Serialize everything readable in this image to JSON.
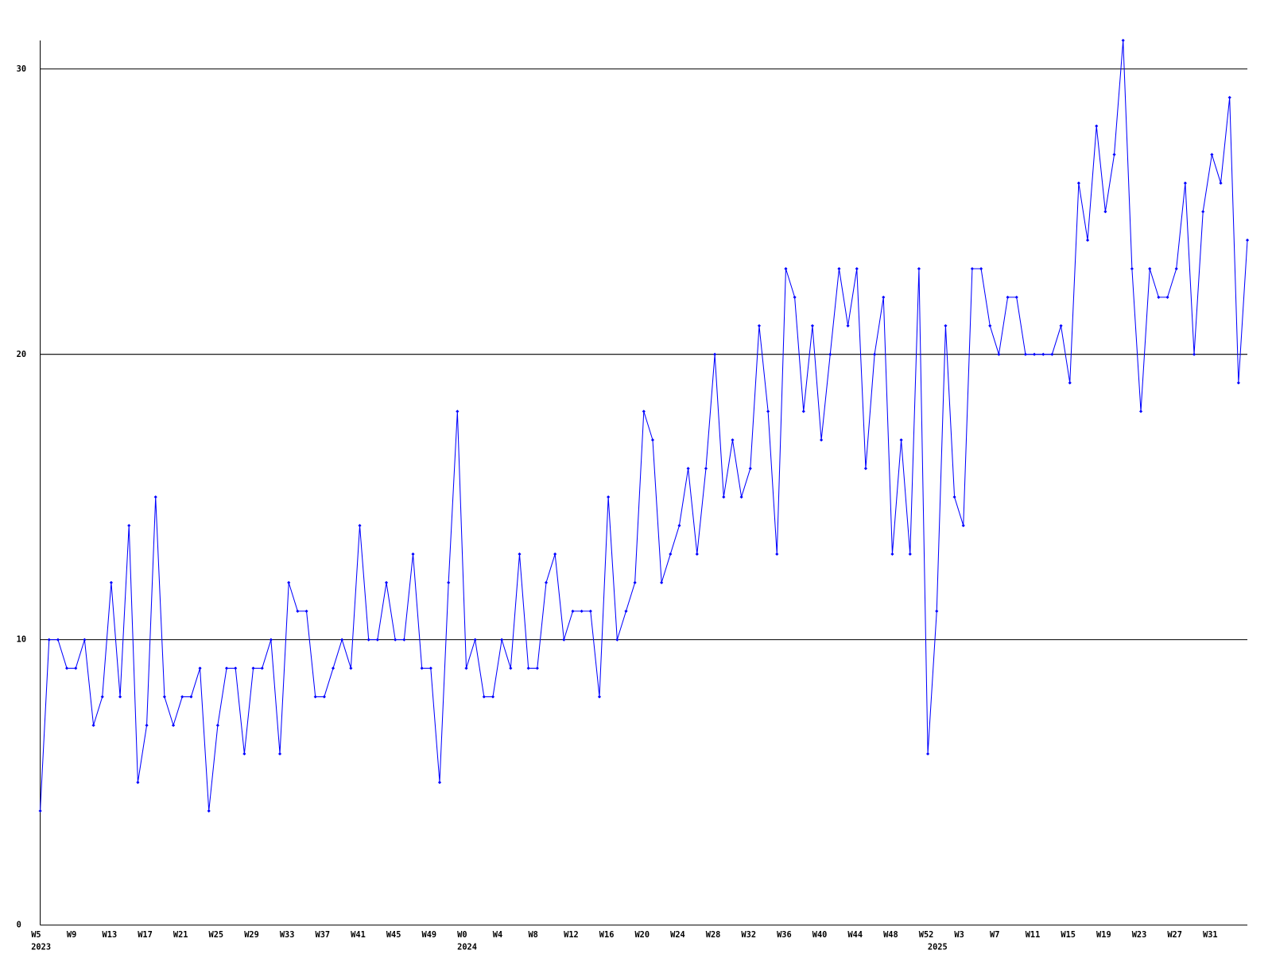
{
  "chart_data": {
    "type": "line",
    "color": "#0000ff",
    "grid": true,
    "ylim": [
      0,
      31
    ],
    "yticks": [
      0,
      10,
      20,
      30
    ],
    "categories": [
      "W5",
      null,
      null,
      null,
      "W9",
      null,
      null,
      null,
      "W13",
      null,
      null,
      null,
      "W17",
      null,
      null,
      null,
      "W21",
      null,
      null,
      null,
      "W25",
      null,
      null,
      null,
      "W29",
      null,
      null,
      null,
      "W33",
      null,
      null,
      null,
      "W37",
      null,
      null,
      null,
      "W41",
      null,
      null,
      null,
      "W45",
      null,
      null,
      null,
      "W49",
      null,
      null,
      null,
      "W0",
      null,
      null,
      null,
      "W4",
      null,
      null,
      null,
      "W8",
      null,
      null,
      null,
      "W12",
      null,
      null,
      null,
      "W16",
      null,
      null,
      null,
      "W20",
      null,
      null,
      null,
      "W24",
      null,
      null,
      null,
      "W28",
      null,
      null,
      null,
      "W32",
      null,
      null,
      null,
      "W36",
      null,
      null,
      null,
      "W40",
      null,
      null,
      null,
      "W44",
      null,
      null,
      null,
      "W48",
      null,
      null,
      null,
      "W52",
      null,
      null,
      null,
      "W3",
      null,
      null,
      null,
      "W7",
      null,
      null,
      null,
      "W11",
      null,
      null,
      null,
      "W15",
      null,
      null,
      null,
      "W19",
      null,
      null,
      null,
      "W23",
      null,
      null,
      null,
      "W27",
      null,
      null,
      null,
      "W31",
      null,
      null,
      null,
      null
    ],
    "year_labels": [
      "2023",
      null,
      null,
      null,
      null,
      null,
      null,
      null,
      null,
      null,
      null,
      null,
      null,
      null,
      null,
      null,
      null,
      null,
      null,
      null,
      null,
      null,
      null,
      null,
      null,
      null,
      null,
      null,
      null,
      null,
      null,
      null,
      null,
      null,
      null,
      null,
      null,
      null,
      null,
      null,
      null,
      null,
      null,
      null,
      null,
      null,
      null,
      null,
      "2024",
      null,
      null,
      null,
      null,
      null,
      null,
      null,
      null,
      null,
      null,
      null,
      null,
      null,
      null,
      null,
      null,
      null,
      null,
      null,
      null,
      null,
      null,
      null,
      null,
      null,
      null,
      null,
      null,
      null,
      null,
      null,
      null,
      null,
      null,
      null,
      null,
      null,
      null,
      null,
      null,
      null,
      null,
      null,
      null,
      null,
      null,
      null,
      null,
      null,
      null,
      null,
      null,
      "2025",
      null,
      null,
      null,
      null,
      null,
      null,
      null,
      null,
      null,
      null,
      null,
      null,
      null,
      null,
      null,
      null,
      null,
      null,
      null,
      null,
      null,
      null,
      null,
      null,
      null,
      null,
      null,
      null,
      null,
      null,
      null,
      null,
      null,
      null,
      null
    ],
    "values": [
      4,
      10,
      10,
      9,
      9,
      10,
      7,
      8,
      12,
      8,
      14,
      5,
      7,
      15,
      8,
      7,
      8,
      8,
      9,
      4,
      7,
      9,
      9,
      6,
      9,
      9,
      10,
      6,
      12,
      11,
      11,
      8,
      8,
      9,
      10,
      9,
      14,
      10,
      10,
      12,
      10,
      10,
      13,
      9,
      9,
      5,
      12,
      18,
      9,
      10,
      8,
      8,
      10,
      9,
      13,
      9,
      9,
      12,
      13,
      10,
      11,
      11,
      11,
      8,
      15,
      10,
      11,
      12,
      18,
      17,
      12,
      13,
      14,
      16,
      13,
      16,
      20,
      15,
      17,
      15,
      16,
      21,
      18,
      13,
      23,
      22,
      18,
      21,
      17,
      20,
      23,
      21,
      23,
      16,
      20,
      22,
      13,
      17,
      13,
      23,
      6,
      11,
      21,
      15,
      14,
      23,
      23,
      21,
      20,
      22,
      22,
      20,
      20,
      20,
      20,
      21,
      19,
      26,
      24,
      28,
      25,
      27,
      31,
      23,
      18,
      23,
      22,
      22,
      23,
      26,
      20,
      25,
      27,
      26,
      29,
      19,
      24
    ]
  }
}
